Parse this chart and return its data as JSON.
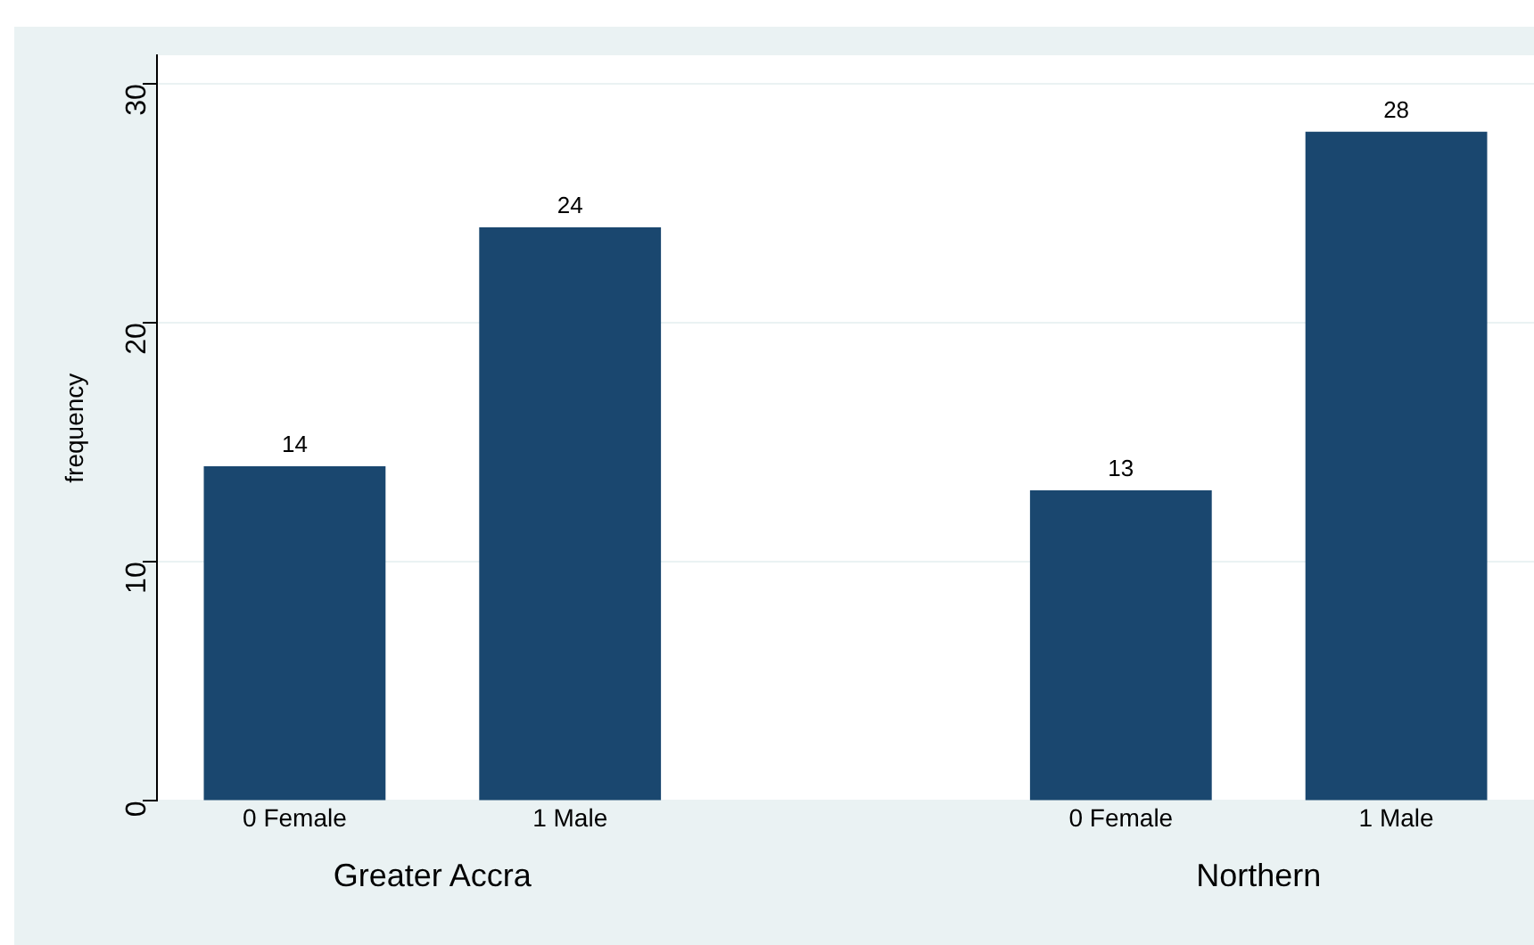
{
  "chart_data": {
    "type": "bar",
    "categories": [
      "0 Female",
      "1 Male",
      null,
      "0 Female",
      "1 Male"
    ],
    "values": [
      14,
      24,
      null,
      13,
      28
    ],
    "color": "#1a476f",
    "ylabel": "frequency",
    "ylim": [
      0,
      31.2
    ],
    "yticks": [
      0,
      10,
      20,
      30
    ],
    "grid": "y",
    "data_labels": true,
    "legend": false,
    "annotations": [
      "Greater Accra",
      "Northern"
    ]
  }
}
